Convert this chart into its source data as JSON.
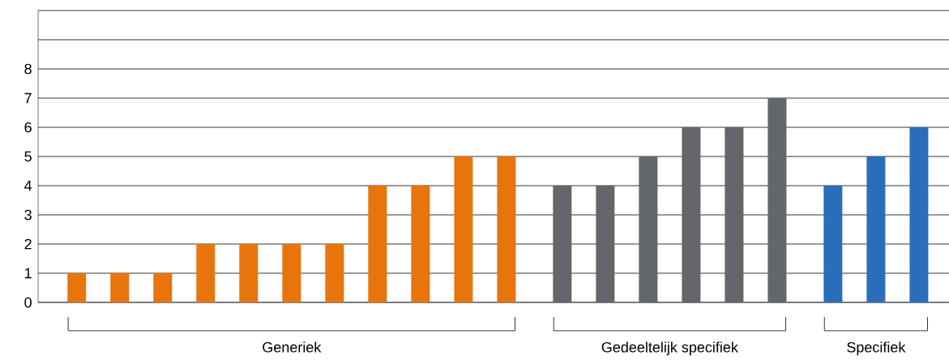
{
  "chart_data": {
    "type": "bar",
    "categories": [
      null,
      null,
      null,
      null,
      null,
      null,
      null,
      null,
      null,
      null,
      null,
      null,
      null,
      null,
      null,
      null,
      null,
      null,
      null,
      null
    ],
    "series": [
      {
        "name": "Generiek",
        "color": "#e8740c",
        "values": [
          1,
          1,
          1,
          2,
          2,
          2,
          2,
          4,
          4,
          5,
          5,
          null,
          null,
          null,
          null,
          null,
          null,
          null,
          null,
          null
        ]
      },
      {
        "name": "Gedeeltelijk specifiek",
        "color": "#63666a",
        "values": [
          null,
          null,
          null,
          null,
          null,
          null,
          null,
          null,
          null,
          null,
          null,
          4,
          4,
          5,
          6,
          6,
          7,
          null,
          null,
          null
        ]
      },
      {
        "name": "Specifiek",
        "color": "#2a6ebb",
        "values": [
          null,
          null,
          null,
          null,
          null,
          null,
          null,
          null,
          null,
          null,
          null,
          null,
          null,
          null,
          null,
          null,
          null,
          4,
          5,
          6
        ]
      }
    ],
    "ylim": [
      0,
      10
    ],
    "yticks": [
      0,
      1,
      2,
      3,
      4,
      5,
      6,
      7,
      8,
      {
        "value": 9,
        "label": null
      },
      {
        "value": 10,
        "label": null
      }
    ],
    "grid": "y"
  }
}
